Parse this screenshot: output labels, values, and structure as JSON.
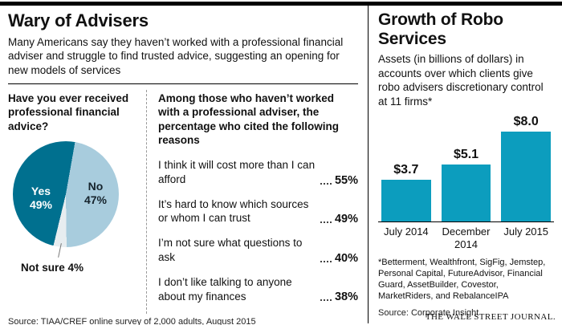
{
  "left": {
    "title": "Wary of Advisers",
    "intro": "Many Americans say they haven’t worked with a professional financial adviser and struggle to find trusted advice, suggesting an opening for new models of services",
    "pie": {
      "question": "Have you ever received professional financial advice?",
      "yes_label": "Yes",
      "yes_pct": "49%",
      "no_label": "No",
      "no_pct": "47%",
      "notsure_label": "Not sure 4%"
    },
    "reasons": {
      "heading": "Among those who haven’t worked with a professional adviser, the percentage who cited the following reasons",
      "items": [
        {
          "text": "I think it will cost more than I can afford",
          "pct": "55%"
        },
        {
          "text": "It’s hard to know which sources or whom I can trust",
          "pct": "49%"
        },
        {
          "text": "I’m not sure what questions to ask",
          "pct": "40%"
        },
        {
          "text": "I don’t like talking to anyone about my finances",
          "pct": "38%"
        }
      ]
    },
    "source": "Source: TIAA/CREF online survey of 2,000 adults, August 2015"
  },
  "right": {
    "title": "Growth of Robo Services",
    "subtitle": "Assets (in billions of dollars) in accounts over which clients give robo advisers discretionary control at 11 firms*",
    "footnote": "*Betterment, Wealthfront, SigFig, Jemstep, Personal Capital, FutureAdvisor, Financial Guard, AssetBuilder, Covestor, MarketRiders, and RebalanceIPA",
    "source": "Source: Corporate Insight"
  },
  "branding": "THE WALL STREET JOURNAL.",
  "chart_data": [
    {
      "type": "pie",
      "title": "Have you ever received professional financial advice?",
      "labels": [
        "Yes",
        "No",
        "Not sure"
      ],
      "values": [
        49,
        47,
        4
      ],
      "colors": [
        "#00708f",
        "#a8ccdd",
        "#e7edf0"
      ],
      "start_angle_deg": 10,
      "legend_position": "inside"
    },
    {
      "type": "bar",
      "title": "Growth of Robo Services",
      "categories": [
        "July 2014",
        "December 2014",
        "July 2015"
      ],
      "values": [
        3.7,
        5.1,
        8.0
      ],
      "value_labels": [
        "$3.7",
        "$5.1",
        "$8.0"
      ],
      "xlabel": "",
      "ylabel": "Assets (billions of dollars)",
      "ylim": [
        0,
        8
      ],
      "grid": false,
      "bar_color": "#0c9dbe"
    }
  ]
}
